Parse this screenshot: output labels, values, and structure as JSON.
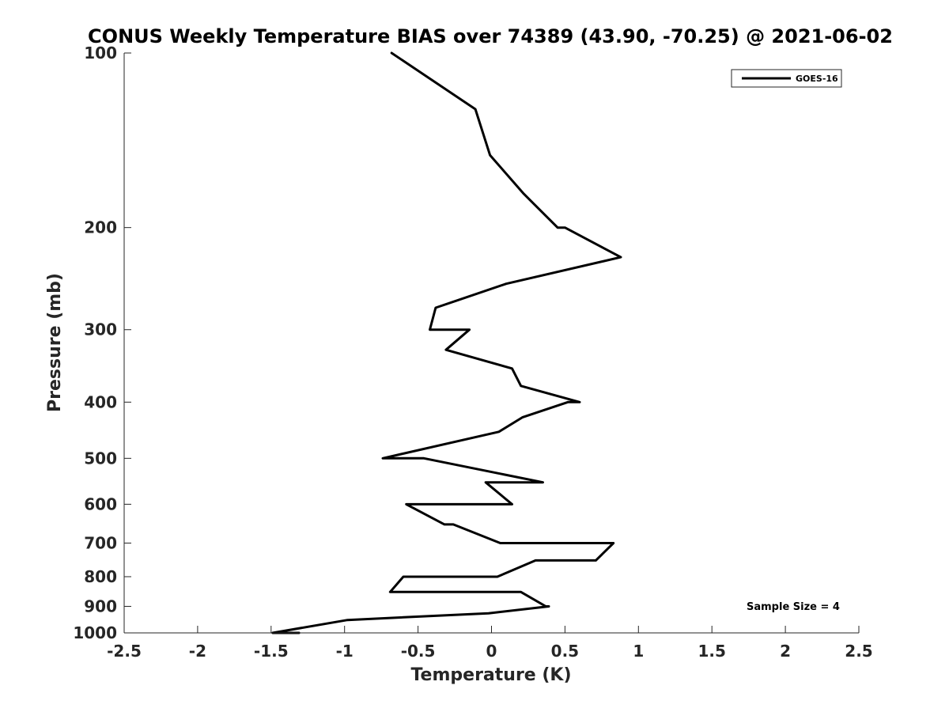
{
  "chart_data": {
    "type": "line",
    "title": "CONUS Weekly Temperature BIAS over 74389 (43.90, -70.25) @ 2021-06-02",
    "xlabel": "Temperature (K)",
    "ylabel": "Pressure (mb)",
    "xlim": [
      -2.5,
      2.5
    ],
    "ylim": [
      1000,
      100
    ],
    "yscale": "log",
    "yreverse": true,
    "xticks": [
      -2.5,
      -2,
      -1.5,
      -1,
      -0.5,
      0,
      0.5,
      1,
      1.5,
      2,
      2.5
    ],
    "xtick_labels": [
      "-2.5",
      "-2",
      "-1.5",
      "-1",
      "-0.5",
      "0",
      "0.5",
      "1",
      "1.5",
      "2",
      "2.5"
    ],
    "yticks": [
      100,
      200,
      300,
      400,
      500,
      600,
      700,
      800,
      900,
      1000
    ],
    "ytick_labels": [
      "100",
      "200",
      "300",
      "400",
      "500",
      "600",
      "700",
      "800",
      "900",
      "1000"
    ],
    "grid": false,
    "legend_position": "top-right",
    "annotation": "Sample Size = 4",
    "series": [
      {
        "name": "GOES-16",
        "color": "#000000",
        "points": [
          {
            "x": -0.68,
            "y": 100
          },
          {
            "x": -0.11,
            "y": 125
          },
          {
            "x": -0.01,
            "y": 150
          },
          {
            "x": 0.22,
            "y": 175
          },
          {
            "x": 0.45,
            "y": 200
          },
          {
            "x": 0.5,
            "y": 200
          },
          {
            "x": 0.88,
            "y": 225
          },
          {
            "x": 0.1,
            "y": 250
          },
          {
            "x": -0.38,
            "y": 275
          },
          {
            "x": -0.42,
            "y": 300
          },
          {
            "x": -0.15,
            "y": 300
          },
          {
            "x": -0.31,
            "y": 325
          },
          {
            "x": 0.14,
            "y": 350
          },
          {
            "x": 0.2,
            "y": 375
          },
          {
            "x": 0.6,
            "y": 400
          },
          {
            "x": 0.52,
            "y": 400
          },
          {
            "x": 0.21,
            "y": 425
          },
          {
            "x": 0.05,
            "y": 450
          },
          {
            "x": -0.74,
            "y": 500
          },
          {
            "x": -0.46,
            "y": 500
          },
          {
            "x": 0.35,
            "y": 550
          },
          {
            "x": -0.04,
            "y": 550
          },
          {
            "x": 0.14,
            "y": 600
          },
          {
            "x": -0.58,
            "y": 600
          },
          {
            "x": -0.32,
            "y": 650
          },
          {
            "x": -0.26,
            "y": 650
          },
          {
            "x": 0.06,
            "y": 700
          },
          {
            "x": 0.58,
            "y": 700
          },
          {
            "x": 0.83,
            "y": 700
          },
          {
            "x": 0.71,
            "y": 750
          },
          {
            "x": 0.3,
            "y": 750
          },
          {
            "x": 0.04,
            "y": 800
          },
          {
            "x": -0.33,
            "y": 800
          },
          {
            "x": -0.6,
            "y": 800
          },
          {
            "x": -0.69,
            "y": 850
          },
          {
            "x": 0.2,
            "y": 850
          },
          {
            "x": 0.37,
            "y": 900
          },
          {
            "x": 0.39,
            "y": 900
          },
          {
            "x": -0.02,
            "y": 925
          },
          {
            "x": -0.98,
            "y": 950
          },
          {
            "x": -1.49,
            "y": 1000
          },
          {
            "x": -1.31,
            "y": 1000
          }
        ]
      }
    ]
  }
}
